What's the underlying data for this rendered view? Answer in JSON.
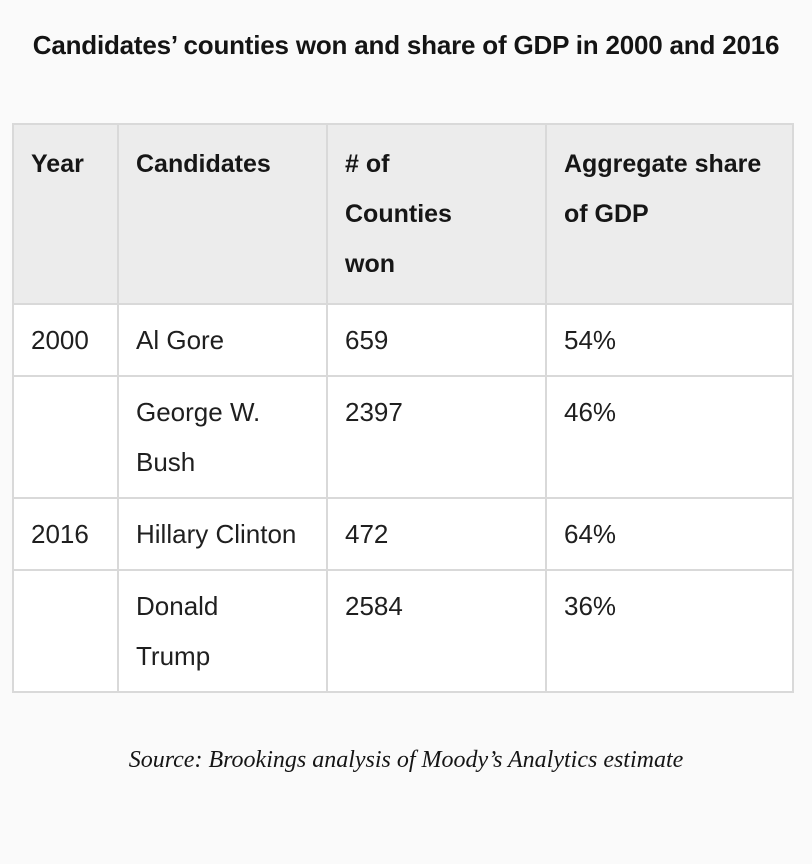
{
  "title": "Candidates’ counties won and share of GDP in 2000 and 2016",
  "table": {
    "header_labels": [
      "Year",
      "Candidates",
      "# of\nCounties\nwon",
      "Aggregate share\nof GDP"
    ],
    "rows": [
      {
        "year": "2000",
        "candidate": "Al Gore",
        "counties": "659",
        "gdp_share": "54%"
      },
      {
        "year": "",
        "candidate": "George W.\nBush",
        "counties": "2397",
        "gdp_share": "46%"
      },
      {
        "year": "2016",
        "candidate": "Hillary Clinton",
        "counties": "472",
        "gdp_share": "64%"
      },
      {
        "year": "",
        "candidate": "Donald\nTrump",
        "counties": "2584",
        "gdp_share": "36%"
      }
    ]
  },
  "source": "Source: Brookings analysis of Moody’s Analytics estimate",
  "colors": {
    "page_background": "#fafafa",
    "header_background": "#ececec",
    "cell_background": "#ffffff",
    "border": "#d9d9d9",
    "text": "#1d1d1d"
  },
  "chart_data": {
    "type": "table",
    "title": "Candidates’ counties won and share of GDP in 2000 and 2016",
    "columns": [
      "Year",
      "Candidates",
      "# of Counties won",
      "Aggregate share of GDP"
    ],
    "rows": [
      {
        "year": 2000,
        "candidate": "Al Gore",
        "counties_won": 659,
        "aggregate_gdp_share_pct": 54
      },
      {
        "year": 2000,
        "candidate": "George W. Bush",
        "counties_won": 2397,
        "aggregate_gdp_share_pct": 46
      },
      {
        "year": 2016,
        "candidate": "Hillary Clinton",
        "counties_won": 472,
        "aggregate_gdp_share_pct": 64
      },
      {
        "year": 2016,
        "candidate": "Donald Trump",
        "counties_won": 2584,
        "aggregate_gdp_share_pct": 36
      }
    ],
    "source": "Source: Brookings analysis of Moody’s Analytics estimate",
    "layout": {
      "grid": true,
      "header_shaded": true
    }
  }
}
